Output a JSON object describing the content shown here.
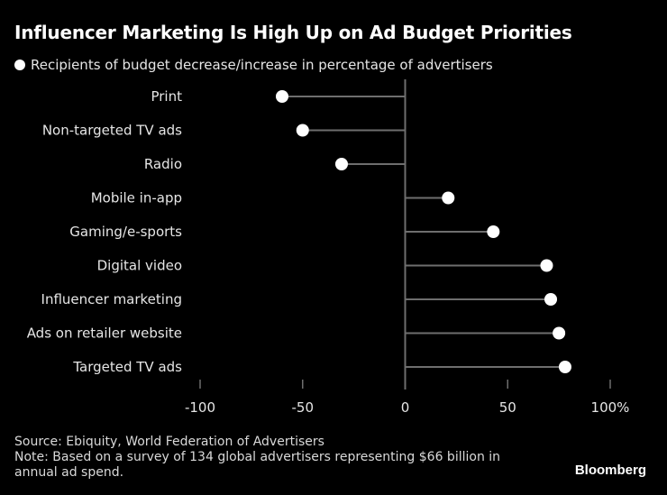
{
  "chart_data": {
    "type": "lollipop",
    "title": "Influencer Marketing Is High Up on Ad Budget Priorities",
    "legend": "Recipients of budget decrease/increase in percentage of advertisers",
    "legend_placement": "top-left",
    "categories": [
      "Print",
      "Non-targeted TV ads",
      "Radio",
      "Mobile in-app",
      "Gaming/e-sports",
      "Digital video",
      "Influencer marketing",
      "Ads on retailer website",
      "Targeted TV ads"
    ],
    "values": [
      -60,
      -50,
      -31,
      21,
      43,
      69,
      71,
      75,
      78
    ],
    "xlim": [
      -100,
      100
    ],
    "x_ticks": [
      -100,
      -50,
      0,
      50,
      100
    ],
    "x_tick_labels": [
      "-100",
      "-50",
      "0",
      "50",
      "100%"
    ],
    "grid": false,
    "colors": {
      "background": "#000000",
      "marker": "#ffffff",
      "stem": "#6e6e6e",
      "text": "#e6e6e6"
    }
  },
  "footer": {
    "source": "Source: Ebiquity, World Federation of Advertisers",
    "note": "Note: Based on a survey of 134 global advertisers representing $66 billion in annual ad spend.",
    "brand": "Bloomberg"
  }
}
